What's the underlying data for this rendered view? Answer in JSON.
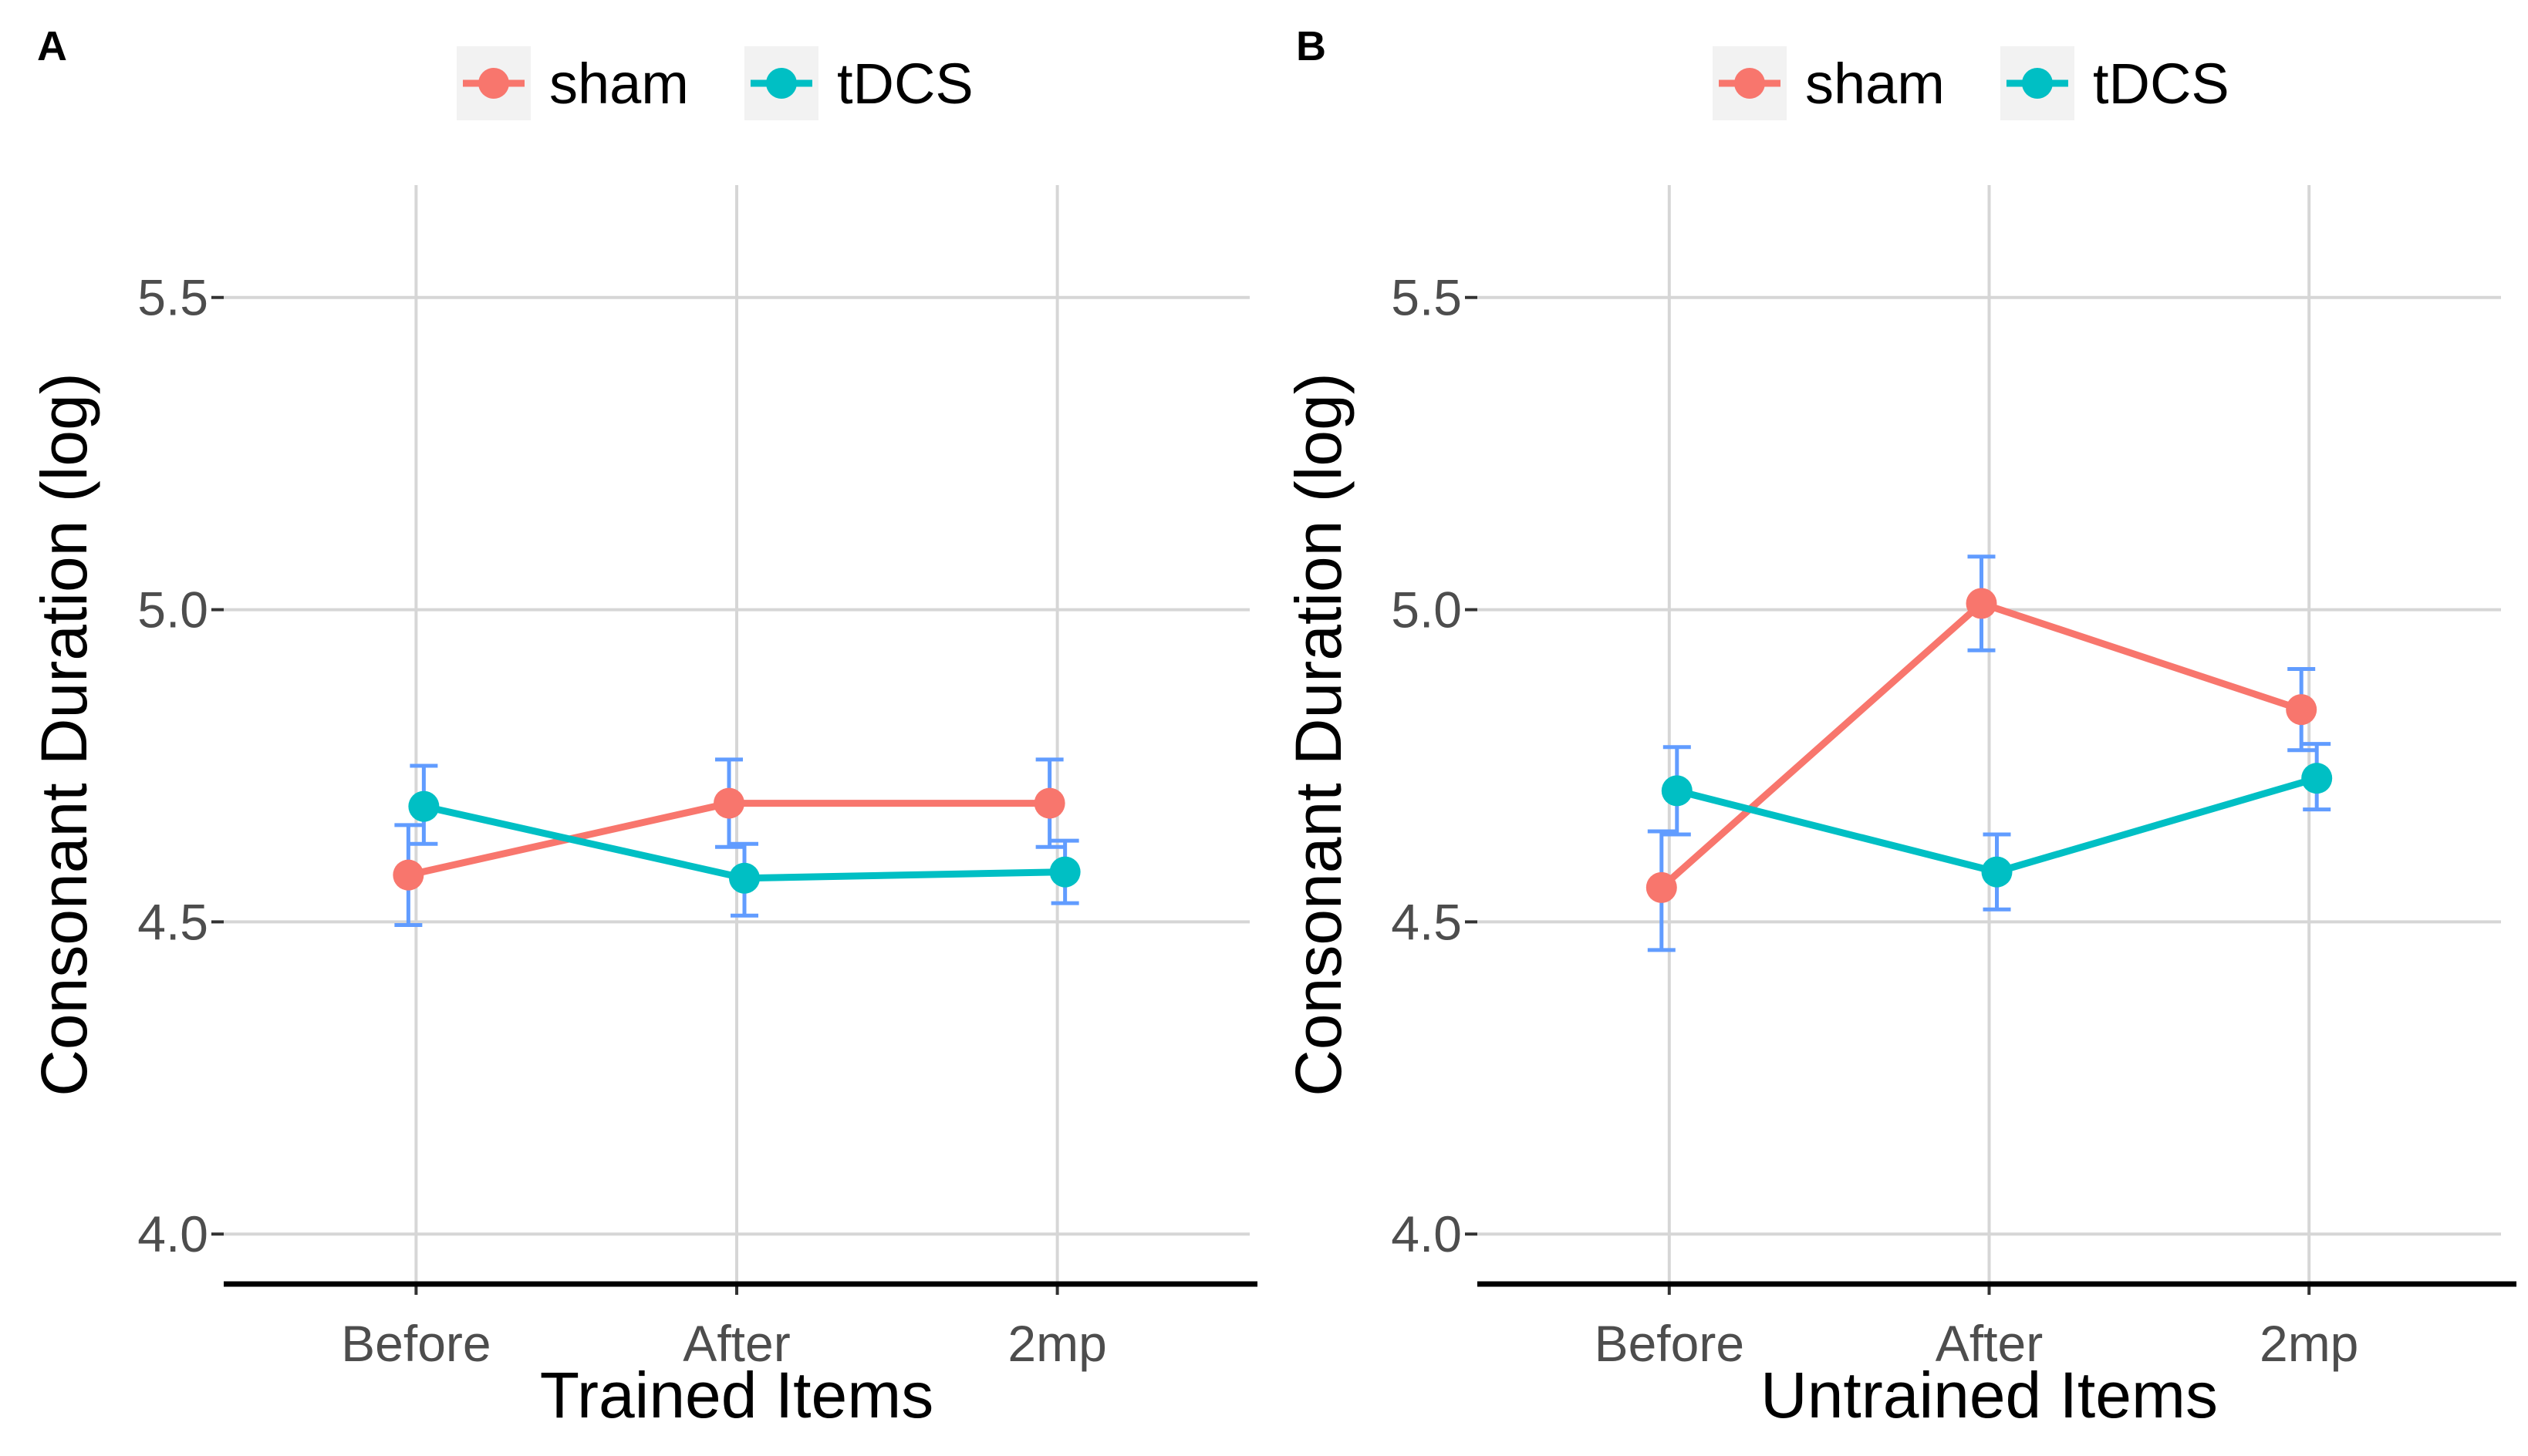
{
  "chart_data": [
    {
      "type": "line",
      "panel_label": "A",
      "xlabel": "Trained Items",
      "ylabel": "Consonant Duration (log)",
      "categories": [
        "Before",
        "After",
        "2mp"
      ],
      "ylim": [
        3.92,
        5.68
      ],
      "yticks": [
        4.0,
        4.5,
        5.0,
        5.5
      ],
      "ytick_labels": [
        "4.0",
        "4.5",
        "5.0",
        "5.5"
      ],
      "legend_position": "top",
      "series": [
        {
          "name": "sham",
          "color": "#F8766D",
          "values": [
            4.575,
            4.69,
            4.69
          ],
          "err_low": [
            4.495,
            4.62,
            4.62
          ],
          "err_high": [
            4.655,
            4.76,
            4.76
          ]
        },
        {
          "name": "tDCS",
          "color": "#00BFC4",
          "values": [
            4.685,
            4.57,
            4.58
          ],
          "err_low": [
            4.625,
            4.51,
            4.53
          ],
          "err_high": [
            4.75,
            4.625,
            4.63
          ]
        }
      ],
      "errorbar_color": "#619CFF"
    },
    {
      "type": "line",
      "panel_label": "B",
      "xlabel": "Untrained Items",
      "ylabel": "Consonant Duration (log)",
      "categories": [
        "Before",
        "After",
        "2mp"
      ],
      "ylim": [
        3.92,
        5.68
      ],
      "yticks": [
        4.0,
        4.5,
        5.0,
        5.5
      ],
      "ytick_labels": [
        "4.0",
        "4.5",
        "5.0",
        "5.5"
      ],
      "legend_position": "top",
      "series": [
        {
          "name": "sham",
          "color": "#F8766D",
          "values": [
            4.555,
            5.01,
            4.84
          ],
          "err_low": [
            4.455,
            4.935,
            4.775
          ],
          "err_high": [
            4.645,
            5.085,
            4.905
          ]
        },
        {
          "name": "tDCS",
          "color": "#00BFC4",
          "values": [
            4.71,
            4.58,
            4.73
          ],
          "err_low": [
            4.64,
            4.52,
            4.68
          ],
          "err_high": [
            4.78,
            4.64,
            4.785
          ]
        }
      ],
      "errorbar_color": "#619CFF"
    }
  ]
}
